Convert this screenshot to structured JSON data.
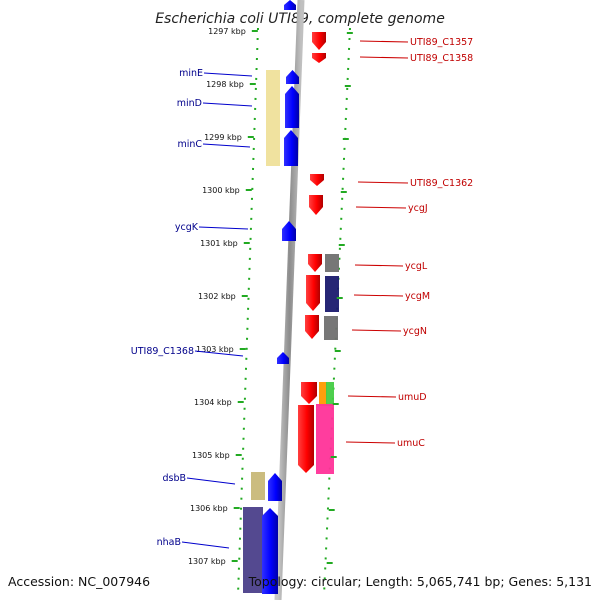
{
  "title": "Escherichia coli UTI89, complete genome",
  "footer": {
    "accession": "Accession: NC_007946",
    "topology": "Topology: circular; Length: 5,065,741 bp; Genes: 5,131"
  },
  "ticks": [
    {
      "label": "1297 kbp",
      "cut": true
    },
    {
      "label": "1298 kbp"
    },
    {
      "label": "1299 kbp"
    },
    {
      "label": "1300 kbp"
    },
    {
      "label": "1301 kbp"
    },
    {
      "label": "1302 kbp"
    },
    {
      "label": "1303 kbp"
    },
    {
      "label": "1304 kbp"
    },
    {
      "label": "1305 kbp"
    },
    {
      "label": "1306 kbp"
    },
    {
      "label": "1307 kbp"
    }
  ],
  "genes_left": [
    {
      "name": "minE"
    },
    {
      "name": "minD"
    },
    {
      "name": "minC"
    },
    {
      "name": "ycgK"
    },
    {
      "name": "UTI89_C1368"
    },
    {
      "name": "dsbB"
    },
    {
      "name": "nhaB"
    }
  ],
  "genes_right": [
    {
      "name": "UTI89_C1357"
    },
    {
      "name": "UTI89_C1358"
    },
    {
      "name": "UTI89_C1362"
    },
    {
      "name": "ycgJ"
    },
    {
      "name": "ycgL"
    },
    {
      "name": "ycgM"
    },
    {
      "name": "ycgN"
    },
    {
      "name": "umuD"
    },
    {
      "name": "umuC"
    }
  ],
  "colors": {
    "forward_gene": "#0000ff",
    "reverse_gene": "#ff0000",
    "cog_yellow": "#efe09a",
    "cog_khaki": "#c8b878",
    "cog_navy": "#1a1a6e",
    "cog_gray": "#707070",
    "cog_purple": "#4b3f8a",
    "cog_orange": "#ff9a00",
    "cog_green": "#44cc44",
    "cog_pink": "#ff3399",
    "backbone": "#888888",
    "tick": "#22aa22"
  }
}
